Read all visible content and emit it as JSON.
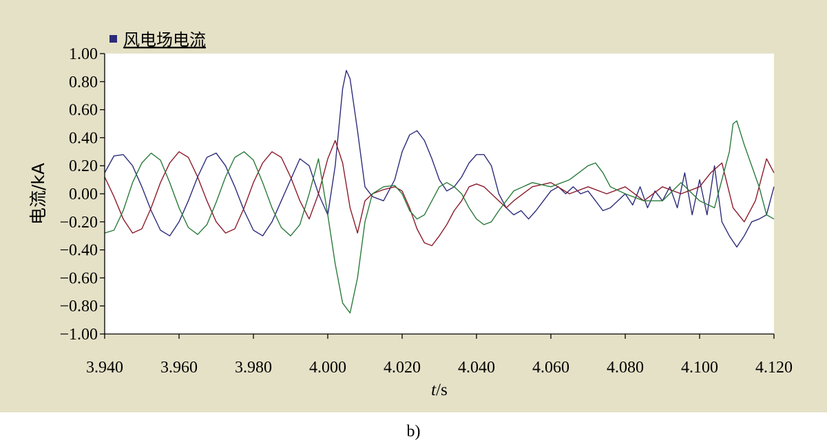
{
  "chart_data": {
    "type": "line",
    "legend": {
      "label": "风电场电流",
      "color": "#2b2b7a",
      "placement": "top-left"
    },
    "ylabel": "电流/kA",
    "xlabel_italic": "t",
    "xlabel_rest": "/s",
    "xlim": [
      3.94,
      4.12
    ],
    "ylim": [
      -1.0,
      1.0
    ],
    "xticks": [
      3.94,
      3.96,
      3.98,
      4.0,
      4.02,
      4.04,
      4.06,
      4.08,
      4.1,
      4.12
    ],
    "xtick_labels": [
      "3.940",
      "3.960",
      "3.980",
      "4.000",
      "4.020",
      "4.040",
      "4.060",
      "4.080",
      "4.100",
      "4.120"
    ],
    "yticks": [
      1.0,
      0.8,
      0.6,
      0.4,
      0.2,
      0.0,
      -0.2,
      -0.4,
      -0.6,
      -0.8,
      -1.0
    ],
    "ytick_labels": [
      "1.00",
      "0.80",
      "0.60",
      "0.40",
      "0.20",
      "0.00",
      "−0.20",
      "−0.40",
      "−0.60",
      "−0.80",
      "−1.00"
    ],
    "grid": false,
    "series": [
      {
        "color": "#2b2b7a",
        "x": [
          3.94,
          3.9425,
          3.945,
          3.9475,
          3.95,
          3.9525,
          3.955,
          3.9575,
          3.96,
          3.9625,
          3.965,
          3.9675,
          3.97,
          3.9725,
          3.975,
          3.9775,
          3.98,
          3.9825,
          3.985,
          3.9875,
          3.99,
          3.9925,
          3.995,
          3.9975,
          4.0,
          4.002,
          4.004,
          4.005,
          4.006,
          4.008,
          4.01,
          4.012,
          4.015,
          4.018,
          4.02,
          4.022,
          4.024,
          4.026,
          4.028,
          4.03,
          4.032,
          4.034,
          4.036,
          4.038,
          4.04,
          4.042,
          4.044,
          4.046,
          4.048,
          4.05,
          4.052,
          4.054,
          4.056,
          4.058,
          4.06,
          4.062,
          4.064,
          4.066,
          4.068,
          4.07,
          4.072,
          4.074,
          4.076,
          4.078,
          4.08,
          4.082,
          4.084,
          4.086,
          4.088,
          4.09,
          4.092,
          4.094,
          4.096,
          4.098,
          4.1,
          4.102,
          4.104,
          4.106,
          4.108,
          4.11,
          4.112,
          4.114,
          4.116,
          4.118,
          4.12
        ],
        "y": [
          0.15,
          0.27,
          0.28,
          0.2,
          0.05,
          -0.12,
          -0.26,
          -0.3,
          -0.2,
          -0.05,
          0.12,
          0.26,
          0.29,
          0.2,
          0.05,
          -0.12,
          -0.26,
          -0.3,
          -0.2,
          -0.05,
          0.1,
          0.25,
          0.2,
          0.0,
          -0.15,
          0.2,
          0.75,
          0.88,
          0.82,
          0.45,
          0.05,
          -0.02,
          -0.05,
          0.1,
          0.3,
          0.42,
          0.45,
          0.38,
          0.25,
          0.1,
          0.02,
          0.05,
          0.12,
          0.22,
          0.28,
          0.28,
          0.2,
          0.0,
          -0.1,
          -0.15,
          -0.12,
          -0.18,
          -0.12,
          -0.05,
          0.02,
          0.05,
          0.0,
          0.05,
          0.0,
          0.02,
          -0.05,
          -0.12,
          -0.1,
          -0.05,
          0.0,
          -0.08,
          0.05,
          -0.1,
          0.02,
          -0.05,
          0.05,
          -0.1,
          0.15,
          -0.15,
          0.1,
          -0.15,
          0.2,
          -0.2,
          -0.3,
          -0.38,
          -0.3,
          -0.2,
          -0.18,
          -0.15,
          0.05
        ]
      },
      {
        "color": "#8b1a2a",
        "x": [
          3.94,
          3.9425,
          3.945,
          3.9475,
          3.95,
          3.9525,
          3.955,
          3.9575,
          3.96,
          3.9625,
          3.965,
          3.9675,
          3.97,
          3.9725,
          3.975,
          3.9775,
          3.98,
          3.9825,
          3.985,
          3.9875,
          3.99,
          3.9925,
          3.995,
          3.9975,
          4.0,
          4.002,
          4.004,
          4.006,
          4.008,
          4.01,
          4.012,
          4.015,
          4.018,
          4.02,
          4.022,
          4.024,
          4.026,
          4.028,
          4.03,
          4.032,
          4.034,
          4.036,
          4.038,
          4.04,
          4.042,
          4.044,
          4.046,
          4.048,
          4.05,
          4.055,
          4.06,
          4.065,
          4.07,
          4.075,
          4.08,
          4.085,
          4.09,
          4.095,
          4.1,
          4.103,
          4.106,
          4.109,
          4.112,
          4.115,
          4.118,
          4.12
        ],
        "y": [
          0.12,
          -0.02,
          -0.18,
          -0.28,
          -0.25,
          -0.1,
          0.08,
          0.22,
          0.3,
          0.26,
          0.12,
          -0.05,
          -0.2,
          -0.28,
          -0.25,
          -0.1,
          0.08,
          0.22,
          0.3,
          0.26,
          0.12,
          -0.05,
          -0.18,
          0.0,
          0.25,
          0.38,
          0.22,
          -0.1,
          -0.28,
          -0.05,
          0.0,
          0.03,
          0.05,
          0.02,
          -0.1,
          -0.25,
          -0.35,
          -0.37,
          -0.3,
          -0.22,
          -0.12,
          -0.05,
          0.05,
          0.07,
          0.05,
          0.0,
          -0.05,
          -0.1,
          -0.05,
          0.05,
          0.08,
          0.0,
          0.05,
          0.0,
          0.05,
          -0.05,
          0.05,
          0.0,
          0.05,
          0.15,
          0.22,
          -0.1,
          -0.2,
          -0.05,
          0.25,
          0.15
        ]
      },
      {
        "color": "#2a7a3a",
        "x": [
          3.94,
          3.9425,
          3.945,
          3.9475,
          3.95,
          3.9525,
          3.955,
          3.9575,
          3.96,
          3.9625,
          3.965,
          3.9675,
          3.97,
          3.9725,
          3.975,
          3.9775,
          3.98,
          3.9825,
          3.985,
          3.9875,
          3.99,
          3.9925,
          3.995,
          3.9975,
          4.0,
          4.002,
          4.004,
          4.006,
          4.008,
          4.01,
          4.012,
          4.015,
          4.018,
          4.02,
          4.022,
          4.024,
          4.026,
          4.028,
          4.03,
          4.032,
          4.034,
          4.036,
          4.038,
          4.04,
          4.042,
          4.044,
          4.046,
          4.048,
          4.05,
          4.055,
          4.06,
          4.065,
          4.07,
          4.072,
          4.074,
          4.076,
          4.08,
          4.085,
          4.09,
          4.095,
          4.1,
          4.104,
          4.106,
          4.108,
          4.109,
          4.11,
          4.112,
          4.114,
          4.116,
          4.118,
          4.12
        ],
        "y": [
          -0.28,
          -0.26,
          -0.12,
          0.08,
          0.22,
          0.29,
          0.24,
          0.08,
          -0.1,
          -0.24,
          -0.29,
          -0.22,
          -0.06,
          0.12,
          0.26,
          0.3,
          0.24,
          0.08,
          -0.1,
          -0.24,
          -0.3,
          -0.22,
          0.0,
          0.25,
          -0.15,
          -0.5,
          -0.78,
          -0.85,
          -0.6,
          -0.2,
          0.0,
          0.05,
          0.06,
          0.0,
          -0.12,
          -0.18,
          -0.15,
          -0.05,
          0.05,
          0.08,
          0.05,
          0.0,
          -0.1,
          -0.18,
          -0.22,
          -0.2,
          -0.12,
          -0.05,
          0.02,
          0.08,
          0.05,
          0.1,
          0.2,
          0.22,
          0.15,
          0.05,
          0.0,
          -0.05,
          -0.05,
          0.08,
          -0.05,
          -0.1,
          0.1,
          0.3,
          0.5,
          0.52,
          0.35,
          0.2,
          0.05,
          -0.15,
          -0.18
        ]
      }
    ]
  },
  "caption": "b)"
}
